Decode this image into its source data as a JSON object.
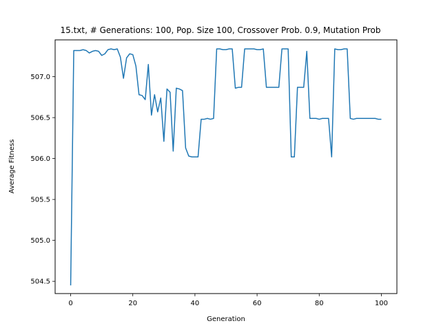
{
  "chart_data": {
    "type": "line",
    "title": "15.txt, # Generations: 100, Pop. Size 100, Crossover Prob. 0.9, Mutation Prob",
    "xlabel": "Generation",
    "ylabel": "Average Fitness",
    "xlim": [
      -5,
      105
    ],
    "ylim": [
      504.35,
      507.45
    ],
    "xticks": [
      0,
      20,
      40,
      60,
      80,
      100
    ],
    "yticks": [
      504.5,
      505.0,
      505.5,
      506.0,
      506.5,
      507.0
    ],
    "xtick_labels": [
      "0",
      "20",
      "40",
      "60",
      "80",
      "100"
    ],
    "ytick_labels": [
      "504.5",
      "505.0",
      "505.5",
      "506.0",
      "506.5",
      "507.0"
    ],
    "grid": false,
    "series": [
      {
        "color": "#1f77b4",
        "x": [
          0,
          1,
          2,
          3,
          4,
          5,
          6,
          7,
          8,
          9,
          10,
          11,
          12,
          13,
          14,
          15,
          16,
          17,
          18,
          19,
          20,
          21,
          22,
          23,
          24,
          25,
          26,
          27,
          28,
          29,
          30,
          31,
          32,
          33,
          34,
          35,
          36,
          37,
          38,
          39,
          40,
          41,
          42,
          43,
          44,
          45,
          46,
          47,
          48,
          49,
          50,
          51,
          52,
          53,
          54,
          55,
          56,
          57,
          58,
          59,
          60,
          61,
          62,
          63,
          64,
          65,
          66,
          67,
          68,
          69,
          70,
          71,
          72,
          73,
          74,
          75,
          76,
          77,
          78,
          79,
          80,
          81,
          82,
          83,
          84,
          85,
          86,
          87,
          88,
          89,
          90,
          91,
          92,
          93,
          94,
          95,
          96,
          97,
          98,
          99,
          100
        ],
        "values": [
          504.45,
          507.32,
          507.32,
          507.32,
          507.33,
          507.32,
          507.29,
          507.31,
          507.32,
          507.31,
          507.26,
          507.28,
          507.33,
          507.34,
          507.33,
          507.34,
          507.24,
          506.98,
          507.23,
          507.28,
          507.27,
          507.13,
          506.78,
          506.77,
          506.72,
          507.15,
          506.53,
          506.78,
          506.57,
          506.74,
          506.21,
          506.85,
          506.81,
          506.09,
          506.86,
          506.85,
          506.83,
          506.13,
          506.03,
          506.02,
          506.02,
          506.02,
          506.48,
          506.48,
          506.49,
          506.48,
          506.49,
          507.34,
          507.34,
          507.33,
          507.33,
          507.34,
          507.34,
          506.86,
          506.87,
          506.87,
          507.34,
          507.34,
          507.34,
          507.34,
          507.33,
          507.33,
          507.34,
          506.87,
          506.87,
          506.87,
          506.87,
          506.87,
          507.34,
          507.34,
          507.34,
          506.02,
          506.02,
          506.87,
          506.87,
          506.87,
          507.31,
          506.49,
          506.49,
          506.49,
          506.48,
          506.49,
          506.49,
          506.49,
          506.02,
          507.34,
          507.33,
          507.33,
          507.34,
          507.34,
          506.49,
          506.48,
          506.49,
          506.49,
          506.49,
          506.49,
          506.49,
          506.49,
          506.49,
          506.48,
          506.48
        ]
      }
    ]
  }
}
